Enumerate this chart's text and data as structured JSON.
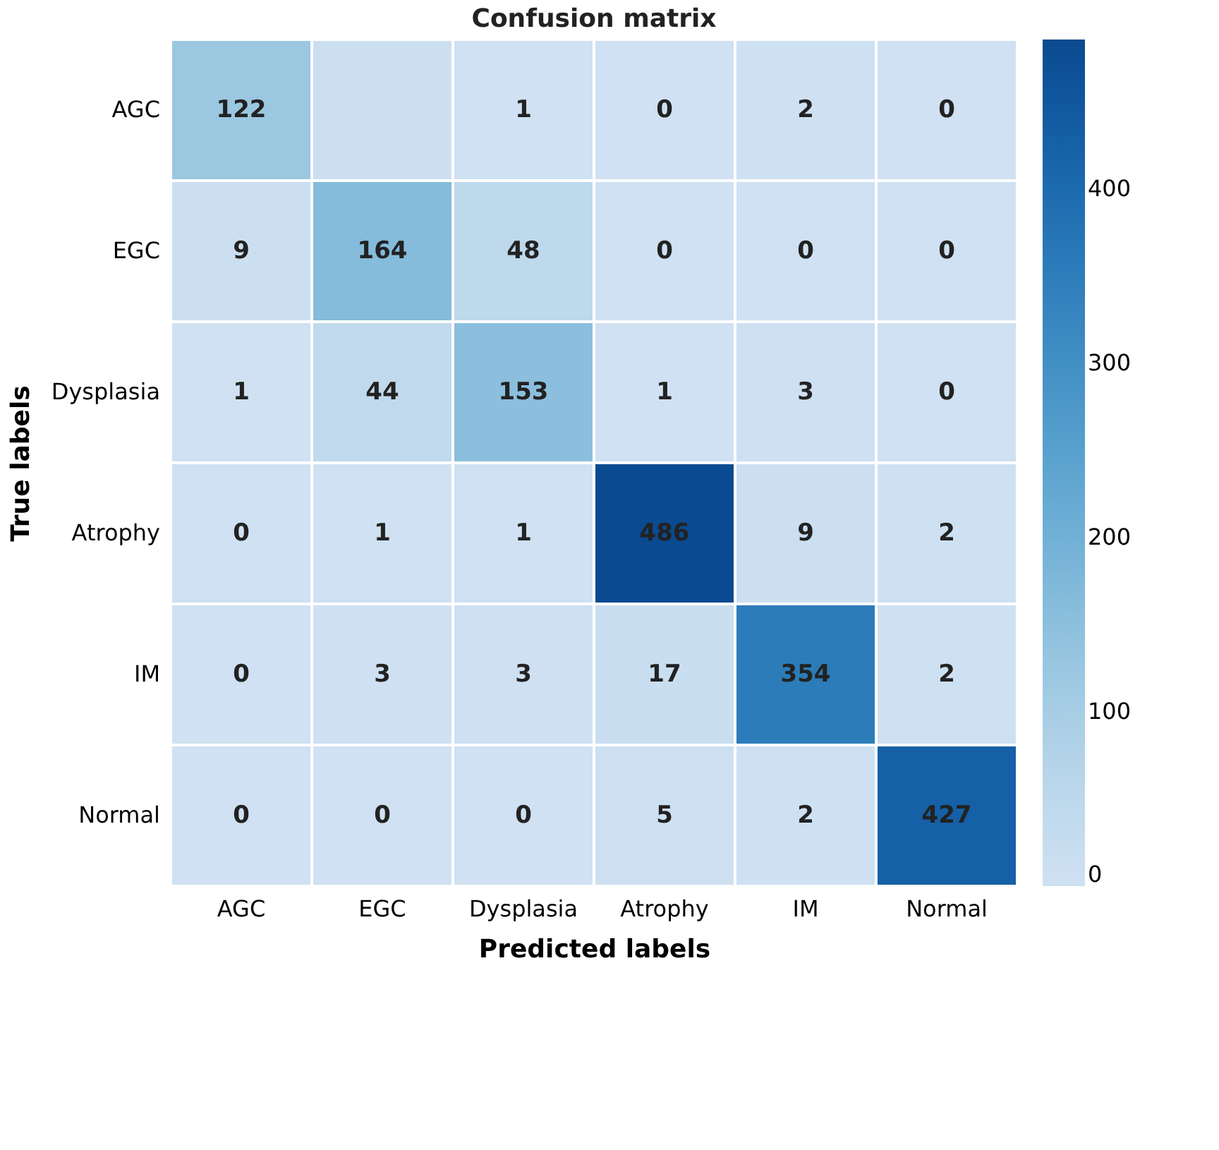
{
  "chart_data": {
    "type": "heatmap",
    "title": "Confusion matrix",
    "xlabel": "Predicted labels",
    "ylabel": "True labels",
    "categories": [
      "AGC",
      "EGC",
      "Dysplasia",
      "Atrophy",
      "IM",
      "Normal"
    ],
    "y_categories": [
      "AGC",
      "EGC",
      "Dysplasia",
      "Atrophy",
      "IM",
      "Normal"
    ],
    "cells": [
      [
        122,
        10,
        1,
        0,
        2,
        0
      ],
      [
        9,
        164,
        48,
        0,
        0,
        0
      ],
      [
        1,
        44,
        153,
        1,
        3,
        0
      ],
      [
        0,
        1,
        1,
        486,
        9,
        2
      ],
      [
        0,
        3,
        3,
        17,
        354,
        2
      ],
      [
        0,
        0,
        0,
        5,
        2,
        427
      ]
    ],
    "cell_labels": [
      [
        "122",
        null,
        "1",
        "0",
        "2",
        "0"
      ],
      [
        "9",
        "164",
        "48",
        "0",
        "0",
        "0"
      ],
      [
        "1",
        "44",
        "153",
        "1",
        "3",
        "0"
      ],
      [
        "0",
        "1",
        "1",
        "486",
        "9",
        "2"
      ],
      [
        "0",
        "3",
        "3",
        "17",
        "354",
        "2"
      ],
      [
        "0",
        "0",
        "0",
        "5",
        "2",
        "427"
      ]
    ],
    "clim": [
      0,
      486
    ],
    "cticks": [
      0,
      100,
      200,
      300,
      400
    ]
  }
}
